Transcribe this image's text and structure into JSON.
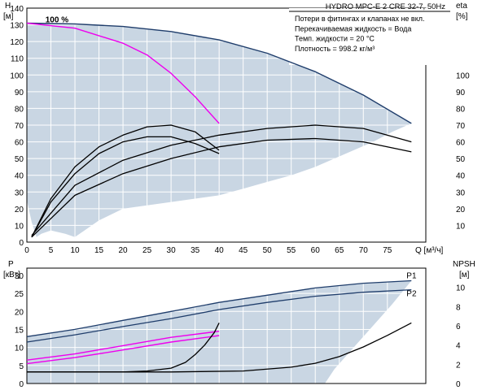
{
  "chart_data": [
    {
      "type": "line",
      "title": "HYDRO MPC-E 2 CRE 32-7, 50Hz",
      "info": [
        "Потери в фитингах и клапанах не вкл.",
        "Перекачиваемая жидкость = Вода",
        "Темп. жидкости = 20 °C",
        "Плотность = 998.2 кг/м³"
      ],
      "ylabel": [
        "H",
        "[м]"
      ],
      "y2label": [
        "eta",
        "[%]"
      ],
      "xlabel": "Q [м³/ч]",
      "xlim": [
        0,
        83
      ],
      "ylim": [
        0,
        140
      ],
      "xticks": [
        0,
        5,
        10,
        15,
        20,
        25,
        30,
        35,
        40,
        45,
        50,
        55,
        60,
        65,
        70,
        75
      ],
      "yticks": [
        0,
        10,
        20,
        30,
        40,
        50,
        60,
        70,
        80,
        90,
        100,
        110,
        120,
        130,
        140
      ],
      "y2ticks": [
        10,
        20,
        30,
        40,
        50,
        60,
        70,
        80,
        90,
        100
      ],
      "grid": true,
      "annotations": [
        {
          "text": "100 %",
          "x": 2.5,
          "y": 130
        }
      ],
      "colors": {
        "head": "#1f3d6b",
        "pink": "#ee00ee",
        "eta": "#000000",
        "area": "#c9d6e3"
      },
      "operating_area": [
        [
          0,
          131
        ],
        [
          10,
          130.5
        ],
        [
          20,
          129
        ],
        [
          30,
          126
        ],
        [
          40,
          121
        ],
        [
          50,
          113
        ],
        [
          60,
          102
        ],
        [
          70,
          88
        ],
        [
          80,
          71
        ],
        [
          76,
          66
        ],
        [
          72,
          60
        ],
        [
          68,
          55
        ],
        [
          64,
          50
        ],
        [
          60,
          45
        ],
        [
          55,
          40
        ],
        [
          50,
          36
        ],
        [
          45,
          32
        ],
        [
          40,
          28
        ],
        [
          35,
          26
        ],
        [
          30,
          24
        ],
        [
          25,
          22
        ],
        [
          20,
          20
        ],
        [
          15,
          13
        ],
        [
          12,
          7
        ],
        [
          10,
          3
        ],
        [
          8,
          5
        ],
        [
          5,
          7
        ],
        [
          3,
          5
        ],
        [
          2,
          3
        ],
        [
          1,
          12
        ],
        [
          0,
          25
        ]
      ],
      "series": [
        {
          "role": "head",
          "x": [
            0,
            10,
            20,
            30,
            40,
            50,
            60,
            70,
            80
          ],
          "y": [
            131,
            130.5,
            129,
            126,
            121,
            113,
            102,
            88,
            71
          ]
        },
        {
          "role": "head-pink",
          "x": [
            0,
            10,
            20,
            25,
            30,
            35,
            40
          ],
          "y": [
            131,
            128,
            119,
            112,
            101,
            87,
            71
          ]
        },
        {
          "role": "eta",
          "x": [
            1,
            5,
            10,
            15,
            20,
            25,
            30,
            35,
            40
          ],
          "y": [
            3,
            26,
            45,
            57,
            64,
            69,
            70,
            66,
            55
          ]
        },
        {
          "role": "eta",
          "x": [
            1,
            5,
            10,
            15,
            20,
            25,
            30,
            35,
            40
          ],
          "y": [
            3,
            24,
            41,
            53,
            60,
            63,
            63,
            59,
            53
          ]
        },
        {
          "role": "eta",
          "x": [
            1,
            10,
            20,
            30,
            40,
            50,
            60,
            70,
            80
          ],
          "y": [
            4,
            34,
            49,
            58,
            64,
            68,
            70,
            68,
            60
          ]
        },
        {
          "role": "eta",
          "x": [
            1,
            10,
            20,
            30,
            40,
            50,
            60,
            70,
            80
          ],
          "y": [
            3,
            28,
            41,
            50,
            57,
            61,
            62,
            60,
            54
          ]
        }
      ]
    },
    {
      "type": "line",
      "ylabel": [
        "P",
        "[кВт]"
      ],
      "y2label": [
        "NPSH",
        "[м]"
      ],
      "xlim": [
        0,
        83
      ],
      "ylim": [
        0,
        32
      ],
      "y2lim": [
        0,
        12
      ],
      "yticks": [
        0,
        5,
        10,
        15,
        20,
        25,
        30
      ],
      "y2ticks": [
        0,
        2,
        4,
        6,
        8,
        10
      ],
      "grid": true,
      "colors": {
        "power": "#1f3d6b",
        "pink": "#ee00ee",
        "npsh": "#000000",
        "area": "#c9d6e3"
      },
      "operating_area": [
        [
          0,
          13
        ],
        [
          10,
          15
        ],
        [
          20,
          17.5
        ],
        [
          30,
          20
        ],
        [
          40,
          22.5
        ],
        [
          50,
          24.5
        ],
        [
          60,
          26.5
        ],
        [
          70,
          27.8
        ],
        [
          80,
          28.5
        ],
        [
          76,
          22
        ],
        [
          72,
          16
        ],
        [
          68,
          10
        ],
        [
          64,
          4
        ],
        [
          62,
          0
        ],
        [
          0,
          0
        ]
      ],
      "series": [
        {
          "name": "P1",
          "axis": "left",
          "x": [
            0,
            10,
            20,
            30,
            40,
            50,
            60,
            70,
            80
          ],
          "y": [
            13,
            15,
            17.5,
            20,
            22.5,
            24.5,
            26.5,
            27.8,
            28.5
          ]
        },
        {
          "name": "P2",
          "axis": "left",
          "x": [
            0,
            10,
            20,
            30,
            40,
            50,
            60,
            70,
            80
          ],
          "y": [
            11.5,
            13.5,
            15.8,
            18,
            20.5,
            22.5,
            24.2,
            25.3,
            26
          ]
        },
        {
          "axis": "left",
          "x": [
            0,
            10,
            20,
            30,
            40
          ],
          "y": [
            6.5,
            8.2,
            10.5,
            12.8,
            14.5
          ]
        },
        {
          "axis": "left",
          "x": [
            0,
            10,
            20,
            30,
            40
          ],
          "y": [
            5.5,
            7.2,
            9.3,
            11.5,
            13.3
          ]
        },
        {
          "axis": "right",
          "x": [
            0,
            10,
            20,
            25,
            30,
            33,
            35,
            37,
            39,
            40
          ],
          "y": [
            1.2,
            1.2,
            1.2,
            1.3,
            1.6,
            2.2,
            3,
            4,
            5.3,
            6.3
          ]
        },
        {
          "axis": "right",
          "x": [
            0,
            30,
            45,
            55,
            60,
            65,
            70,
            75,
            80
          ],
          "y": [
            1.2,
            1.2,
            1.3,
            1.7,
            2.1,
            2.8,
            3.8,
            5,
            6.3
          ]
        }
      ]
    }
  ]
}
